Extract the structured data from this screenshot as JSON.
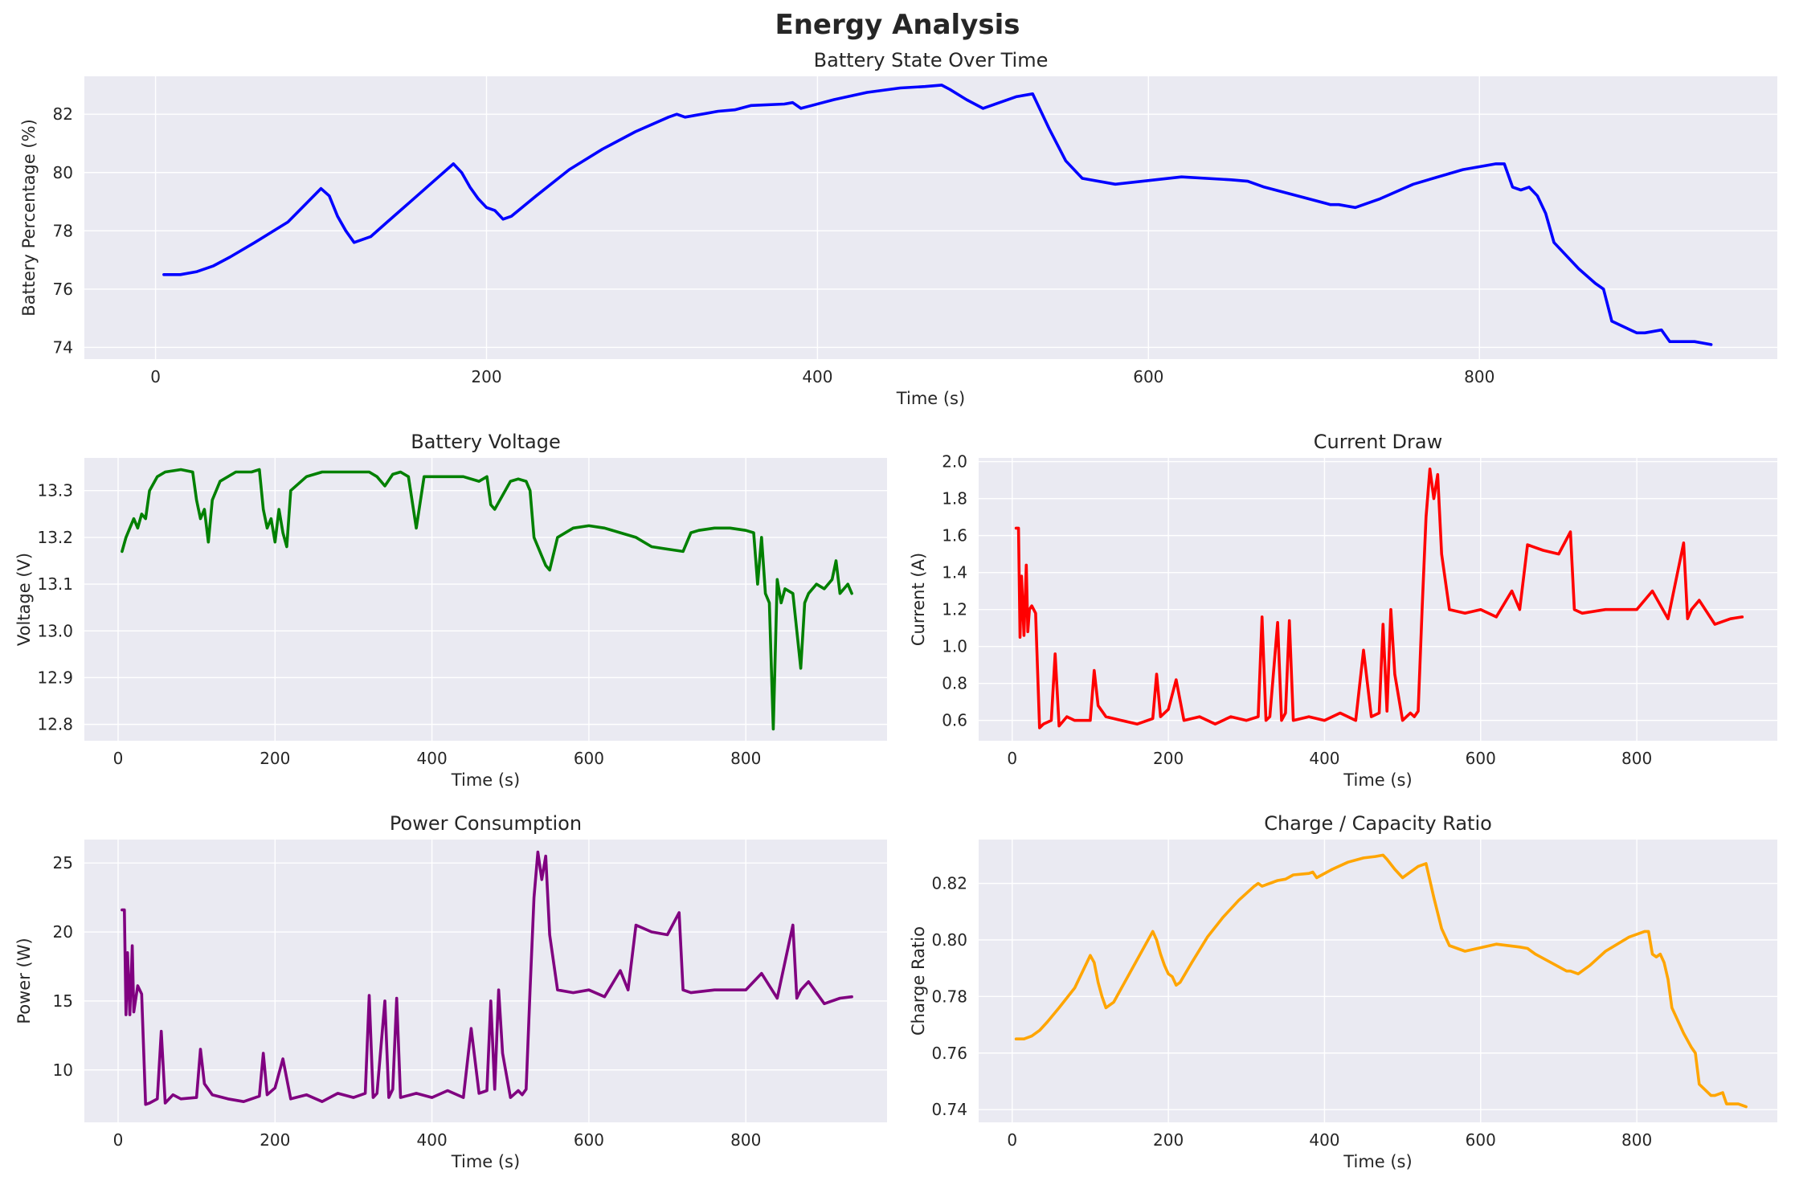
{
  "figure": {
    "title": "Energy Analysis"
  },
  "chart_data": [
    {
      "type": "line",
      "title": "Battery State Over Time",
      "xlabel": "Time (s)",
      "ylabel": "Battery Percentage (%)",
      "color": "#0000ff",
      "xlim": [
        -43,
        980
      ],
      "ylim": [
        73.6,
        83.3
      ],
      "xticks": [
        0,
        200,
        400,
        600,
        800
      ],
      "yticks": [
        74,
        76,
        78,
        80,
        82
      ],
      "grid": true,
      "x": [
        5,
        15,
        25,
        35,
        45,
        60,
        80,
        100,
        105,
        110,
        115,
        120,
        130,
        140,
        160,
        180,
        185,
        190,
        195,
        200,
        205,
        210,
        215,
        230,
        250,
        270,
        290,
        310,
        315,
        320,
        340,
        350,
        360,
        380,
        385,
        390,
        410,
        430,
        450,
        465,
        475,
        480,
        490,
        500,
        520,
        530,
        540,
        550,
        560,
        580,
        620,
        650,
        660,
        670,
        690,
        710,
        715,
        725,
        740,
        760,
        790,
        810,
        815,
        820,
        825,
        830,
        835,
        840,
        845,
        860,
        870,
        875,
        880,
        895,
        900,
        910,
        915,
        930,
        940
      ],
      "series": [
        {
          "values": [
            76.5,
            76.5,
            76.6,
            76.8,
            77.1,
            77.6,
            78.3,
            79.45,
            79.2,
            78.5,
            78.0,
            77.6,
            77.8,
            78.3,
            79.3,
            80.3,
            80.0,
            79.5,
            79.1,
            78.8,
            78.7,
            78.4,
            78.5,
            79.2,
            80.1,
            80.8,
            81.4,
            81.9,
            82.0,
            81.9,
            82.1,
            82.15,
            82.3,
            82.35,
            82.4,
            82.2,
            82.5,
            82.75,
            82.9,
            82.95,
            83.0,
            82.85,
            82.5,
            82.2,
            82.6,
            82.7,
            81.5,
            80.4,
            79.8,
            79.6,
            79.85,
            79.75,
            79.7,
            79.5,
            79.2,
            78.9,
            78.9,
            78.8,
            79.1,
            79.6,
            80.1,
            80.3,
            80.3,
            79.5,
            79.4,
            79.5,
            79.2,
            78.6,
            77.6,
            76.7,
            76.2,
            76.0,
            74.9,
            74.5,
            74.5,
            74.6,
            74.2,
            74.2,
            74.1
          ]
        }
      ]
    },
    {
      "type": "line",
      "title": "Battery Voltage",
      "xlabel": "Time (s)",
      "ylabel": "Voltage (V)",
      "color": "#008000",
      "xlim": [
        -43,
        980
      ],
      "ylim": [
        12.765,
        13.37
      ],
      "xticks": [
        0,
        200,
        400,
        600,
        800
      ],
      "yticks": [
        12.8,
        12.9,
        13.0,
        13.1,
        13.2,
        13.3
      ],
      "grid": true,
      "x": [
        5,
        10,
        15,
        20,
        25,
        30,
        35,
        40,
        50,
        60,
        80,
        95,
        100,
        105,
        110,
        115,
        120,
        130,
        150,
        170,
        180,
        185,
        190,
        195,
        200,
        205,
        210,
        215,
        220,
        240,
        260,
        300,
        320,
        330,
        340,
        350,
        360,
        370,
        380,
        390,
        400,
        420,
        440,
        460,
        470,
        475,
        480,
        500,
        510,
        520,
        525,
        530,
        540,
        545,
        550,
        560,
        580,
        600,
        620,
        640,
        660,
        680,
        700,
        720,
        730,
        740,
        760,
        780,
        800,
        810,
        815,
        820,
        825,
        830,
        835,
        840,
        845,
        850,
        860,
        865,
        870,
        875,
        880,
        890,
        900,
        910,
        915,
        920,
        930,
        935
      ],
      "series": [
        {
          "values": [
            13.17,
            13.2,
            13.22,
            13.24,
            13.22,
            13.25,
            13.24,
            13.3,
            13.33,
            13.34,
            13.345,
            13.34,
            13.28,
            13.24,
            13.26,
            13.19,
            13.28,
            13.32,
            13.34,
            13.34,
            13.345,
            13.26,
            13.22,
            13.24,
            13.19,
            13.26,
            13.21,
            13.18,
            13.3,
            13.33,
            13.34,
            13.34,
            13.34,
            13.33,
            13.31,
            13.335,
            13.34,
            13.33,
            13.22,
            13.33,
            13.33,
            13.33,
            13.33,
            13.32,
            13.33,
            13.27,
            13.26,
            13.32,
            13.325,
            13.32,
            13.3,
            13.2,
            13.16,
            13.14,
            13.13,
            13.2,
            13.22,
            13.225,
            13.22,
            13.21,
            13.2,
            13.18,
            13.175,
            13.17,
            13.21,
            13.215,
            13.22,
            13.22,
            13.215,
            13.21,
            13.1,
            13.2,
            13.08,
            13.06,
            12.79,
            13.11,
            13.06,
            13.09,
            13.08,
            13.0,
            12.92,
            13.06,
            13.08,
            13.1,
            13.09,
            13.11,
            13.15,
            13.08,
            13.1,
            13.08
          ]
        }
      ]
    },
    {
      "type": "line",
      "title": "Current Draw",
      "xlabel": "Time (s)",
      "ylabel": "Current (A)",
      "color": "#ff0000",
      "xlim": [
        -43,
        980
      ],
      "ylim": [
        0.49,
        2.02
      ],
      "xticks": [
        0,
        200,
        400,
        600,
        800
      ],
      "yticks": [
        0.6,
        0.8,
        1.0,
        1.2,
        1.4,
        1.6,
        1.8,
        2.0
      ],
      "grid": true,
      "x": [
        5,
        8,
        10,
        12,
        15,
        18,
        20,
        22,
        25,
        30,
        35,
        40,
        50,
        55,
        60,
        70,
        80,
        100,
        105,
        110,
        120,
        140,
        160,
        180,
        185,
        190,
        200,
        210,
        220,
        240,
        260,
        280,
        300,
        315,
        320,
        325,
        330,
        340,
        345,
        350,
        355,
        360,
        380,
        400,
        420,
        440,
        450,
        460,
        470,
        475,
        480,
        485,
        490,
        500,
        510,
        515,
        520,
        525,
        530,
        535,
        540,
        545,
        550,
        560,
        580,
        600,
        620,
        640,
        650,
        660,
        680,
        700,
        715,
        720,
        730,
        760,
        800,
        820,
        840,
        860,
        865,
        870,
        880,
        900,
        920,
        935
      ],
      "series": [
        {
          "values": [
            1.64,
            1.64,
            1.05,
            1.38,
            1.06,
            1.44,
            1.08,
            1.2,
            1.22,
            1.18,
            0.56,
            0.58,
            0.6,
            0.96,
            0.57,
            0.62,
            0.6,
            0.6,
            0.87,
            0.68,
            0.62,
            0.6,
            0.58,
            0.61,
            0.85,
            0.62,
            0.66,
            0.82,
            0.6,
            0.62,
            0.58,
            0.62,
            0.6,
            0.62,
            1.16,
            0.6,
            0.62,
            1.13,
            0.6,
            0.64,
            1.14,
            0.6,
            0.62,
            0.6,
            0.64,
            0.6,
            0.98,
            0.62,
            0.64,
            1.12,
            0.65,
            1.2,
            0.85,
            0.6,
            0.64,
            0.62,
            0.65,
            1.2,
            1.7,
            1.96,
            1.8,
            1.93,
            1.5,
            1.2,
            1.18,
            1.2,
            1.16,
            1.3,
            1.2,
            1.55,
            1.52,
            1.5,
            1.62,
            1.2,
            1.18,
            1.2,
            1.2,
            1.3,
            1.15,
            1.56,
            1.15,
            1.2,
            1.25,
            1.12,
            1.15,
            1.16
          ]
        }
      ]
    },
    {
      "type": "line",
      "title": "Power Consumption",
      "xlabel": "Time (s)",
      "ylabel": "Power (W)",
      "color": "#800080",
      "xlim": [
        -43,
        980
      ],
      "ylim": [
        6.2,
        26.7
      ],
      "xticks": [
        0,
        200,
        400,
        600,
        800
      ],
      "yticks": [
        10,
        15,
        20,
        25
      ],
      "grid": true,
      "x": [
        5,
        8,
        10,
        12,
        15,
        18,
        20,
        25,
        30,
        35,
        40,
        50,
        55,
        60,
        70,
        80,
        100,
        105,
        110,
        120,
        140,
        160,
        180,
        185,
        190,
        200,
        210,
        220,
        240,
        260,
        280,
        300,
        315,
        320,
        325,
        330,
        340,
        345,
        350,
        355,
        360,
        380,
        400,
        420,
        440,
        450,
        460,
        470,
        475,
        480,
        485,
        490,
        500,
        510,
        515,
        520,
        525,
        530,
        535,
        540,
        545,
        550,
        560,
        580,
        600,
        620,
        640,
        650,
        660,
        680,
        700,
        715,
        720,
        730,
        760,
        800,
        820,
        840,
        860,
        865,
        870,
        880,
        900,
        920,
        935
      ],
      "series": [
        {
          "values": [
            21.6,
            21.6,
            14.0,
            18.5,
            14.0,
            19.0,
            14.2,
            16.1,
            15.5,
            7.5,
            7.6,
            7.9,
            12.8,
            7.6,
            8.2,
            7.9,
            8.0,
            11.5,
            9.0,
            8.2,
            7.9,
            7.7,
            8.1,
            11.2,
            8.2,
            8.7,
            10.8,
            7.9,
            8.2,
            7.7,
            8.3,
            8.0,
            8.3,
            15.4,
            8.0,
            8.3,
            15.0,
            8.0,
            8.6,
            15.2,
            8.0,
            8.3,
            8.0,
            8.5,
            8.0,
            13.0,
            8.3,
            8.5,
            15.0,
            8.6,
            15.8,
            11.2,
            8.0,
            8.5,
            8.2,
            8.6,
            15.8,
            22.5,
            25.8,
            23.8,
            25.5,
            19.8,
            15.8,
            15.6,
            15.8,
            15.3,
            17.2,
            15.8,
            20.5,
            20.0,
            19.8,
            21.4,
            15.8,
            15.6,
            15.8,
            15.8,
            17.0,
            15.2,
            20.5,
            15.2,
            15.8,
            16.4,
            14.8,
            15.2,
            15.3
          ]
        }
      ]
    },
    {
      "type": "line",
      "title": "Charge / Capacity Ratio",
      "xlabel": "Time (s)",
      "ylabel": "Charge Ratio",
      "color": "#ffa500",
      "xlim": [
        -43,
        980
      ],
      "ylim": [
        0.7355,
        0.8355
      ],
      "xticks": [
        0,
        200,
        400,
        600,
        800
      ],
      "yticks": [
        0.74,
        0.76,
        0.78,
        0.8,
        0.82
      ],
      "grid": true,
      "x": [
        5,
        15,
        25,
        35,
        45,
        60,
        80,
        100,
        105,
        110,
        115,
        120,
        130,
        140,
        160,
        180,
        185,
        190,
        195,
        200,
        205,
        210,
        215,
        230,
        250,
        270,
        290,
        310,
        315,
        320,
        340,
        350,
        360,
        380,
        385,
        390,
        410,
        430,
        450,
        465,
        475,
        480,
        490,
        500,
        520,
        530,
        540,
        550,
        560,
        580,
        620,
        650,
        660,
        670,
        690,
        710,
        715,
        725,
        740,
        760,
        790,
        810,
        815,
        820,
        825,
        830,
        835,
        840,
        845,
        860,
        870,
        875,
        880,
        895,
        900,
        910,
        915,
        930,
        940
      ],
      "series": [
        {
          "values": [
            0.765,
            0.765,
            0.766,
            0.768,
            0.771,
            0.776,
            0.783,
            0.7945,
            0.792,
            0.785,
            0.78,
            0.776,
            0.778,
            0.783,
            0.793,
            0.803,
            0.8,
            0.795,
            0.791,
            0.788,
            0.787,
            0.784,
            0.785,
            0.792,
            0.801,
            0.808,
            0.814,
            0.819,
            0.82,
            0.819,
            0.821,
            0.8215,
            0.823,
            0.8235,
            0.824,
            0.822,
            0.825,
            0.8275,
            0.829,
            0.8295,
            0.83,
            0.8285,
            0.825,
            0.822,
            0.826,
            0.827,
            0.815,
            0.804,
            0.798,
            0.796,
            0.7985,
            0.7975,
            0.797,
            0.795,
            0.792,
            0.789,
            0.789,
            0.788,
            0.791,
            0.796,
            0.801,
            0.803,
            0.803,
            0.795,
            0.794,
            0.795,
            0.792,
            0.786,
            0.776,
            0.767,
            0.762,
            0.76,
            0.749,
            0.745,
            0.745,
            0.746,
            0.742,
            0.742,
            0.741
          ]
        }
      ]
    }
  ]
}
